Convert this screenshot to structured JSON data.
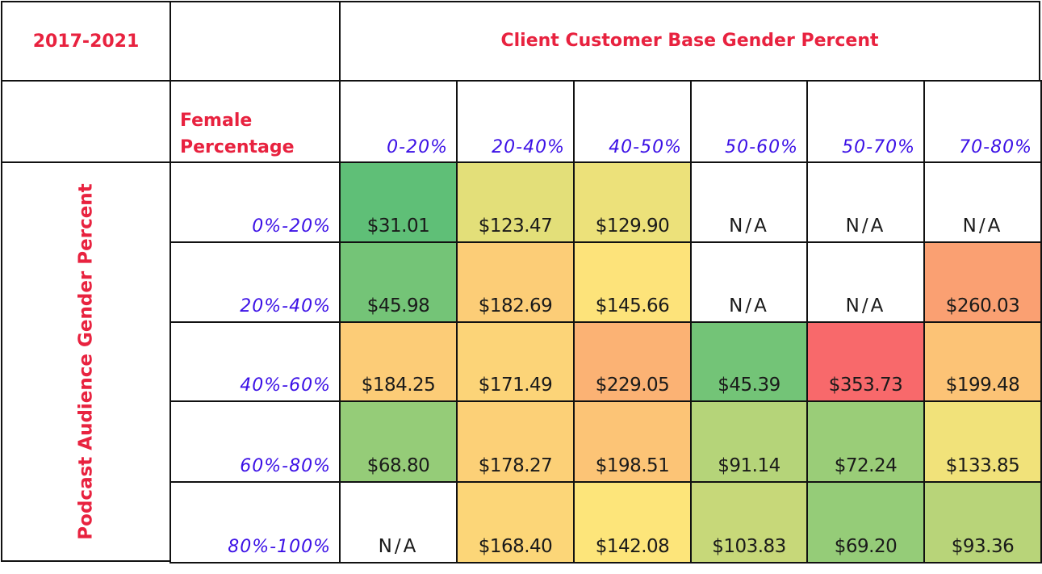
{
  "table": {
    "period": "2017-2021",
    "column_title": "Client Customer Base Gender Percent",
    "row_title": "Podcast Audience Gender Percent",
    "corner_label_line1": "Female",
    "corner_label_line2": "Percentage",
    "colors": {
      "heading": "#e8223f",
      "bucket_label": "#3b10e6",
      "border": "#111111",
      "low": "#5fbf77",
      "mid": "#fde57a",
      "high": "#f8696b"
    }
  },
  "chart_data": {
    "type": "heatmap",
    "title": "Client Customer Base Gender Percent",
    "subtitle": "2017-2021",
    "xlabel": "Client Customer Base Gender Percent",
    "ylabel": "Podcast Audience Gender Percent",
    "x_categories": [
      "0-20%",
      "20-40%",
      "40-50%",
      "50-60%",
      "50-70%",
      "70-80%"
    ],
    "y_categories": [
      "0%-20%",
      "20%-40%",
      "40%-60%",
      "60%-80%",
      "80%-100%"
    ],
    "cells": [
      [
        "$31.01",
        "$123.47",
        "$129.90",
        "N/A",
        "N/A",
        "N/A"
      ],
      [
        "$45.98",
        "$182.69",
        "$145.66",
        "N/A",
        "N/A",
        "$260.03"
      ],
      [
        "$184.25",
        "$171.49",
        "$229.05",
        "$45.39",
        "$353.73",
        "$199.48"
      ],
      [
        "$68.80",
        "$178.27",
        "$198.51",
        "$91.14",
        "$72.24",
        "$133.85"
      ],
      [
        "N/A",
        "$168.40",
        "$142.08",
        "$103.83",
        "$69.20",
        "$93.36"
      ]
    ],
    "values": [
      [
        31.01,
        123.47,
        129.9,
        null,
        null,
        null
      ],
      [
        45.98,
        182.69,
        145.66,
        null,
        null,
        260.03
      ],
      [
        184.25,
        171.49,
        229.05,
        45.39,
        353.73,
        199.48
      ],
      [
        68.8,
        178.27,
        198.51,
        91.14,
        72.24,
        133.85
      ],
      [
        null,
        168.4,
        142.08,
        103.83,
        69.2,
        93.36
      ]
    ],
    "color_scale": {
      "min": 31.01,
      "mid": 142.08,
      "max": 353.73,
      "min_color": "#5fbf77",
      "mid_color": "#fde57a",
      "max_color": "#f8696b"
    }
  }
}
